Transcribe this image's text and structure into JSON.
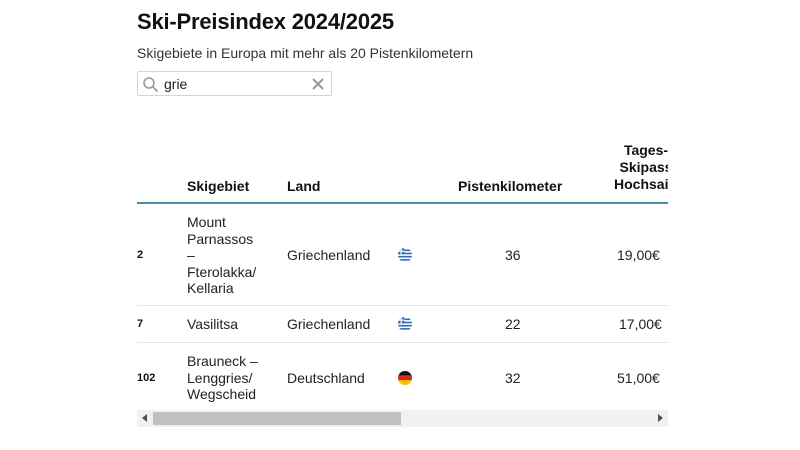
{
  "header": {
    "title": "Ski-Preisindex 2024/2025",
    "subtitle": "Skigebiete in Europa mit mehr als 20 Pistenkilometern"
  },
  "search": {
    "value": "grie",
    "search_icon": "search-icon",
    "clear_icon": "close-icon"
  },
  "table": {
    "columns": {
      "skigebiet": "Skigebiet",
      "land": "Land",
      "pistenkilometer": "Pistenkilometer",
      "tagesskipass_line1": "Tages-",
      "tagesskipass_line2": "Skipass",
      "tagesskipass_line3": "Hochsaison"
    },
    "rows": [
      {
        "rank": "2",
        "name_lines": [
          "Mount",
          "Parnassos",
          "–",
          "Fterolakka/",
          "Kellaria"
        ],
        "land": "Griechenland",
        "flag": "greece-flag",
        "km": "36",
        "price": "19,00€"
      },
      {
        "rank": "7",
        "name_lines": [
          "Vasilitsa"
        ],
        "land": "Griechenland",
        "flag": "greece-flag",
        "km": "22",
        "price": "17,00€"
      },
      {
        "rank": "102",
        "name_lines": [
          "Brauneck –",
          "Lenggries/",
          "Wegscheid"
        ],
        "land": "Deutschland",
        "flag": "germany-flag",
        "km": "32",
        "price": "51,00€"
      }
    ]
  },
  "colors": {
    "header_rule": "#4a8fa8"
  }
}
